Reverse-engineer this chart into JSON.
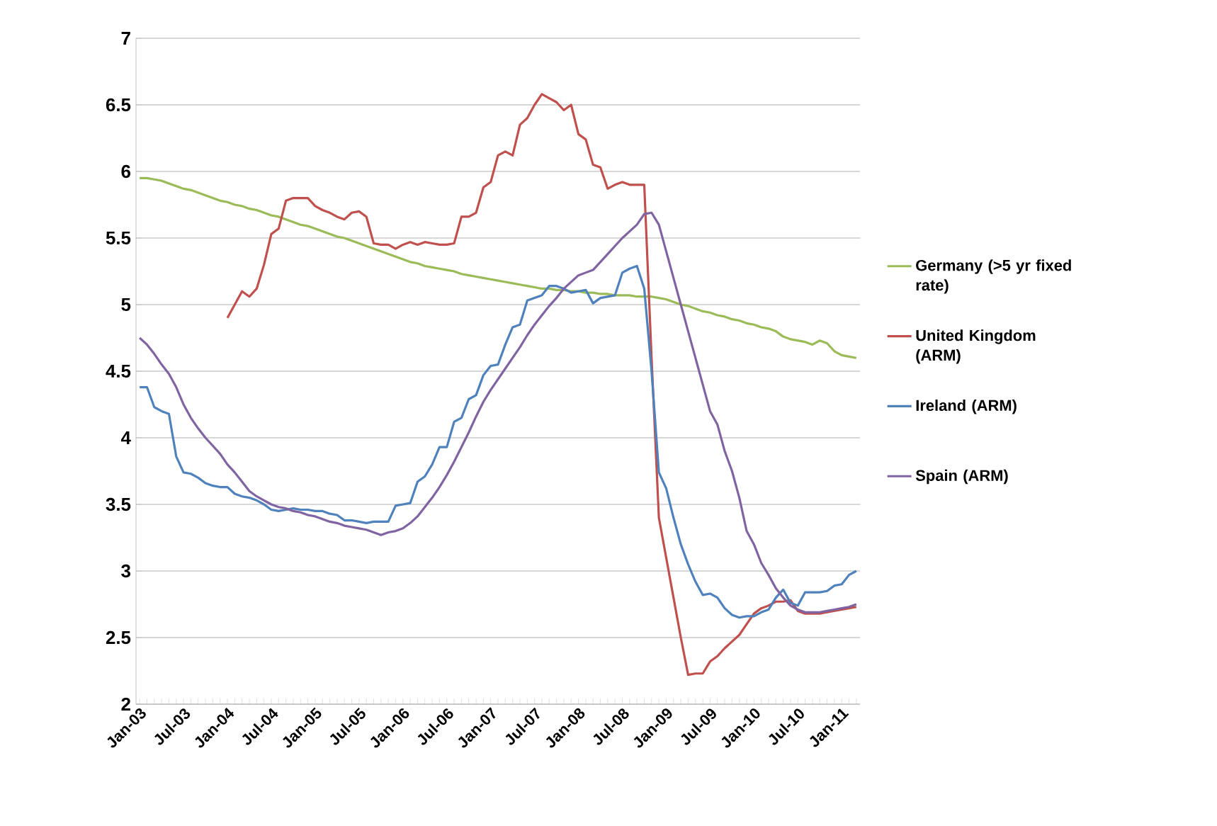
{
  "chart_data": {
    "type": "line",
    "categories": [
      "Jan-03",
      null,
      null,
      null,
      null,
      null,
      "Jul-03",
      null,
      null,
      null,
      null,
      null,
      "Jan-04",
      null,
      null,
      null,
      null,
      null,
      "Jul-04",
      null,
      null,
      null,
      null,
      null,
      "Jan-05",
      null,
      null,
      null,
      null,
      null,
      "Jul-05",
      null,
      null,
      null,
      null,
      null,
      "Jan-06",
      null,
      null,
      null,
      null,
      null,
      "Jul-06",
      null,
      null,
      null,
      null,
      null,
      "Jan-07",
      null,
      null,
      null,
      null,
      null,
      "Jul-07",
      null,
      null,
      null,
      null,
      null,
      "Jan-08",
      null,
      null,
      null,
      null,
      null,
      "Jul-08",
      null,
      null,
      null,
      null,
      null,
      "Jan-09",
      null,
      null,
      null,
      null,
      null,
      "Jul-09",
      null,
      null,
      null,
      null,
      null,
      "Jan-10",
      null,
      null,
      null,
      null,
      null,
      "Jul-10",
      null,
      null,
      null,
      null,
      null,
      "Jan-11",
      null,
      null
    ],
    "series": [
      {
        "name": "Germany (>5 yr fixed rate)",
        "color": "#9bbb59",
        "values": [
          5.95,
          5.95,
          5.94,
          5.93,
          5.91,
          5.89,
          5.87,
          5.86,
          5.84,
          5.82,
          5.8,
          5.78,
          5.77,
          5.75,
          5.74,
          5.72,
          5.71,
          5.69,
          5.67,
          5.66,
          5.64,
          5.62,
          5.6,
          5.59,
          5.57,
          5.55,
          5.53,
          5.51,
          5.5,
          5.48,
          5.46,
          5.44,
          5.42,
          5.4,
          5.38,
          5.36,
          5.34,
          5.32,
          5.31,
          5.29,
          5.28,
          5.27,
          5.26,
          5.25,
          5.23,
          5.22,
          5.21,
          5.2,
          5.19,
          5.18,
          5.17,
          5.16,
          5.15,
          5.14,
          5.13,
          5.12,
          5.12,
          5.11,
          5.11,
          5.1,
          5.1,
          5.09,
          5.09,
          5.08,
          5.08,
          5.07,
          5.07,
          5.07,
          5.06,
          5.06,
          5.06,
          5.05,
          5.04,
          5.02,
          5.0,
          4.99,
          4.97,
          4.95,
          4.94,
          4.92,
          4.91,
          4.89,
          4.88,
          4.86,
          4.85,
          4.83,
          4.82,
          4.8,
          4.76,
          4.74,
          4.73,
          4.72,
          4.7,
          4.73,
          4.71,
          4.65,
          4.62,
          4.61,
          4.6
        ]
      },
      {
        "name": "United Kingdom (ARM)",
        "color": "#c0504d",
        "values": [
          null,
          null,
          null,
          null,
          null,
          null,
          null,
          null,
          null,
          null,
          null,
          null,
          4.9,
          5.0,
          5.1,
          5.06,
          5.12,
          5.3,
          5.53,
          5.57,
          5.78,
          5.8,
          5.8,
          5.8,
          5.74,
          5.71,
          5.69,
          5.66,
          5.64,
          5.69,
          5.7,
          5.66,
          5.46,
          5.45,
          5.45,
          5.42,
          5.45,
          5.47,
          5.45,
          5.47,
          5.46,
          5.45,
          5.45,
          5.46,
          5.66,
          5.66,
          5.69,
          5.88,
          5.92,
          6.12,
          6.15,
          6.12,
          6.35,
          6.4,
          6.5,
          6.58,
          6.55,
          6.52,
          6.46,
          6.5,
          6.28,
          6.24,
          6.05,
          6.03,
          5.87,
          5.9,
          5.92,
          5.9,
          5.9,
          5.9,
          4.6,
          3.4,
          3.1,
          2.8,
          2.5,
          2.22,
          2.23,
          2.23,
          2.32,
          2.36,
          2.42,
          2.47,
          2.52,
          2.6,
          2.68,
          2.72,
          2.74,
          2.77,
          2.77,
          2.78,
          2.7,
          2.68,
          2.68,
          2.68,
          2.69,
          2.7,
          2.71,
          2.72,
          2.73
        ]
      },
      {
        "name": "Ireland (ARM)",
        "color": "#4f81bd",
        "values": [
          4.38,
          4.38,
          4.23,
          4.2,
          4.18,
          3.86,
          3.74,
          3.73,
          3.7,
          3.66,
          3.64,
          3.63,
          3.63,
          3.58,
          3.56,
          3.55,
          3.53,
          3.5,
          3.46,
          3.45,
          3.46,
          3.47,
          3.46,
          3.46,
          3.45,
          3.45,
          3.43,
          3.42,
          3.38,
          3.38,
          3.37,
          3.36,
          3.37,
          3.37,
          3.37,
          3.49,
          3.5,
          3.51,
          3.67,
          3.71,
          3.8,
          3.93,
          3.93,
          4.12,
          4.15,
          4.29,
          4.32,
          4.47,
          4.54,
          4.55,
          4.7,
          4.83,
          4.85,
          5.03,
          5.05,
          5.07,
          5.14,
          5.14,
          5.12,
          5.09,
          5.1,
          5.11,
          5.01,
          5.05,
          5.06,
          5.07,
          5.24,
          5.27,
          5.29,
          5.12,
          4.5,
          3.74,
          3.62,
          3.4,
          3.2,
          3.05,
          2.92,
          2.82,
          2.83,
          2.8,
          2.72,
          2.67,
          2.65,
          2.66,
          2.66,
          2.69,
          2.71,
          2.8,
          2.86,
          2.76,
          2.74,
          2.84,
          2.84,
          2.84,
          2.85,
          2.89,
          2.9,
          2.97,
          3.0
        ]
      },
      {
        "name": "Spain (ARM)",
        "color": "#8064a2",
        "values": [
          4.75,
          4.7,
          4.63,
          4.55,
          4.48,
          4.38,
          4.25,
          4.15,
          4.07,
          4.0,
          3.94,
          3.88,
          3.8,
          3.74,
          3.67,
          3.6,
          3.56,
          3.53,
          3.5,
          3.48,
          3.47,
          3.45,
          3.44,
          3.42,
          3.41,
          3.39,
          3.37,
          3.36,
          3.34,
          3.33,
          3.32,
          3.31,
          3.29,
          3.27,
          3.29,
          3.3,
          3.32,
          3.36,
          3.41,
          3.48,
          3.55,
          3.63,
          3.72,
          3.82,
          3.93,
          4.04,
          4.16,
          4.27,
          4.36,
          4.44,
          4.52,
          4.6,
          4.68,
          4.77,
          4.85,
          4.92,
          4.99,
          5.05,
          5.12,
          5.17,
          5.22,
          5.24,
          5.26,
          5.32,
          5.38,
          5.44,
          5.5,
          5.55,
          5.6,
          5.68,
          5.69,
          5.6,
          5.4,
          5.2,
          5.0,
          4.8,
          4.6,
          4.4,
          4.2,
          4.1,
          3.9,
          3.75,
          3.55,
          3.3,
          3.2,
          3.06,
          2.97,
          2.87,
          2.8,
          2.74,
          2.71,
          2.69,
          2.69,
          2.69,
          2.7,
          2.71,
          2.72,
          2.73,
          2.75
        ]
      }
    ],
    "ylim": [
      2,
      7
    ],
    "yticks": [
      2,
      2.5,
      3,
      3.5,
      4,
      4.5,
      5,
      5.5,
      6,
      6.5,
      7
    ],
    "grid": "y",
    "legend": "right"
  }
}
